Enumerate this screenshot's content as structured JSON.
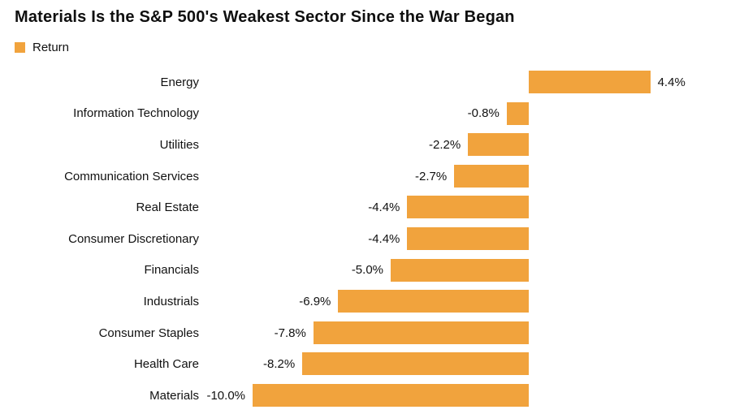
{
  "title": "Materials Is the S&P 500's Weakest Sector Since the War Began",
  "legend": {
    "label": "Return",
    "color": "#f1a33d"
  },
  "chart_data": {
    "type": "bar",
    "orientation": "horizontal",
    "title": "Materials Is the S&P 500's Weakest Sector Since the War Began",
    "series_name": "Return",
    "categories": [
      "Energy",
      "Information Technology",
      "Utilities",
      "Communication Services",
      "Real Estate",
      "Consumer Discretionary",
      "Financials",
      "Industrials",
      "Consumer Staples",
      "Health Care",
      "Materials"
    ],
    "values": [
      4.4,
      -0.8,
      -2.2,
      -2.7,
      -4.4,
      -4.4,
      -5.0,
      -6.9,
      -7.8,
      -8.2,
      -10.0
    ],
    "value_labels": [
      "4.4%",
      "-0.8%",
      "-2.2%",
      "-2.7%",
      "-4.4%",
      "-4.4%",
      "-5.0%",
      "-6.9%",
      "-7.8%",
      "-8.2%",
      "-10.0%"
    ],
    "unit": "%",
    "xlim": [
      -10.5,
      7.3
    ],
    "bar_color": "#f1a33d",
    "grid": false,
    "legend_position": "top-left",
    "value_labels_shown": true,
    "background": "#ffffff"
  }
}
